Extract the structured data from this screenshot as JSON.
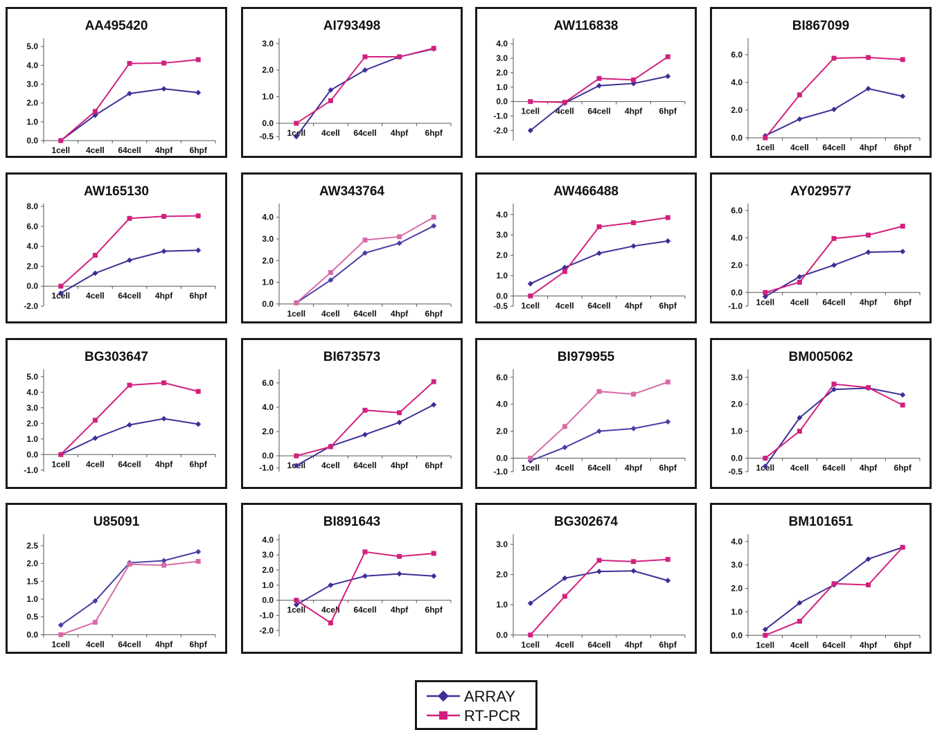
{
  "figure": {
    "legend": {
      "array_label": "ARRAY",
      "rtpcr_label": "RT-PCR"
    }
  },
  "chart_data": [
    {
      "type": "line",
      "title": "AA495420",
      "categories": [
        "1cell",
        "4cell",
        "64cell",
        "4hpf",
        "6hpf"
      ],
      "yticks": [
        "0.0",
        "1.0",
        "2.0",
        "3.0",
        "4.0",
        "5.0"
      ],
      "ylim": [
        0,
        5.3
      ],
      "series": [
        {
          "name": "ARRAY",
          "color": "#3d2f96",
          "values": [
            0.0,
            1.35,
            2.5,
            2.75,
            2.55
          ]
        },
        {
          "name": "RT-PCR",
          "color": "#d2207e",
          "values": [
            0.0,
            1.55,
            4.1,
            4.12,
            4.3
          ]
        }
      ]
    },
    {
      "type": "line",
      "title": "AI793498",
      "categories": [
        "1cell",
        "4cell",
        "64cell",
        "4hpf",
        "6hpf"
      ],
      "yticks": [
        "-0.5",
        "0.0",
        "1.0",
        "2.0",
        "3.0"
      ],
      "ylim": [
        -0.65,
        3.1
      ],
      "series": [
        {
          "name": "ARRAY",
          "color": "#3d2f96",
          "values": [
            -0.5,
            1.25,
            2.0,
            2.5,
            2.8
          ]
        },
        {
          "name": "RT-PCR",
          "color": "#d2207e",
          "values": [
            0.0,
            0.85,
            2.5,
            2.5,
            2.82
          ]
        }
      ]
    },
    {
      "type": "line",
      "title": "AW116838",
      "categories": [
        "1cell",
        "4cell",
        "64cell",
        "4hpf",
        "6hpf"
      ],
      "yticks": [
        "-2.0",
        "-1.0",
        "0.0",
        "1.0",
        "2.0",
        "3.0",
        "4.0"
      ],
      "ylim": [
        -2.7,
        4.2
      ],
      "series": [
        {
          "name": "ARRAY",
          "color": "#3d2f96",
          "values": [
            -2.0,
            -0.1,
            1.1,
            1.25,
            1.75
          ]
        },
        {
          "name": "RT-PCR",
          "color": "#d2207e",
          "values": [
            0.0,
            -0.05,
            1.6,
            1.5,
            3.1
          ]
        }
      ]
    },
    {
      "type": "line",
      "title": "BI867099",
      "categories": [
        "1cell",
        "4cell",
        "64cell",
        "4hpf",
        "6hpf"
      ],
      "yticks": [
        "0.0",
        "2.0",
        "4.0",
        "6.0"
      ],
      "ylim": [
        -0.2,
        7.0
      ],
      "series": [
        {
          "name": "ARRAY",
          "color": "#3d2f96",
          "values": [
            0.15,
            1.35,
            2.05,
            3.55,
            3.0
          ]
        },
        {
          "name": "RT-PCR",
          "color": "#d2207e",
          "values": [
            0.0,
            3.1,
            5.75,
            5.8,
            5.65
          ]
        }
      ]
    },
    {
      "type": "line",
      "title": "AW165130",
      "categories": [
        "1cell",
        "4cell",
        "64cell",
        "4hpf",
        "6hpf"
      ],
      "yticks": [
        "-2.0",
        "0.0",
        "2.0",
        "4.0",
        "6.0",
        "8.0"
      ],
      "ylim": [
        -2.0,
        8.0
      ],
      "series": [
        {
          "name": "ARRAY",
          "color": "#3d2f96",
          "values": [
            -0.7,
            1.3,
            2.6,
            3.5,
            3.6
          ]
        },
        {
          "name": "RT-PCR",
          "color": "#d2207e",
          "values": [
            0.0,
            3.1,
            6.8,
            7.0,
            7.05
          ]
        }
      ]
    },
    {
      "type": "line",
      "title": "AW343764",
      "categories": [
        "1cell",
        "4cell",
        "64cell",
        "4hpf",
        "6hpf"
      ],
      "yticks": [
        "0.0",
        "1.0",
        "2.0",
        "3.0",
        "4.0"
      ],
      "ylim": [
        -0.1,
        4.5
      ],
      "series": [
        {
          "name": "ARRAY",
          "color": "#4a3ea5",
          "values": [
            0.05,
            1.1,
            2.35,
            2.8,
            3.6
          ]
        },
        {
          "name": "RT-PCR",
          "color": "#d86aa6",
          "values": [
            0.05,
            1.45,
            2.95,
            3.1,
            4.0
          ]
        }
      ]
    },
    {
      "type": "line",
      "title": "AW466488",
      "categories": [
        "1cell",
        "4cell",
        "64cell",
        "4hpf",
        "6hpf"
      ],
      "yticks": [
        "-0.5",
        "0.0",
        "1.0",
        "2.0",
        "3.0",
        "4.0"
      ],
      "ylim": [
        -0.5,
        4.4
      ],
      "series": [
        {
          "name": "ARRAY",
          "color": "#3d2f96",
          "values": [
            0.6,
            1.4,
            2.1,
            2.45,
            2.7
          ]
        },
        {
          "name": "RT-PCR",
          "color": "#d2207e",
          "values": [
            0.0,
            1.2,
            3.4,
            3.6,
            3.85
          ]
        }
      ]
    },
    {
      "type": "line",
      "title": "AY029577",
      "categories": [
        "1cell",
        "4cell",
        "64cell",
        "4hpf",
        "6hpf"
      ],
      "yticks": [
        "-1.0",
        "0.0",
        "2.0",
        "4.0",
        "6.0"
      ],
      "ylim": [
        -1.0,
        6.3
      ],
      "series": [
        {
          "name": "ARRAY",
          "color": "#3d2f96",
          "values": [
            -0.3,
            1.15,
            2.0,
            2.95,
            3.0
          ]
        },
        {
          "name": "RT-PCR",
          "color": "#d2207e",
          "values": [
            0.0,
            0.75,
            3.95,
            4.2,
            4.85
          ]
        }
      ]
    },
    {
      "type": "line",
      "title": "BG303647",
      "categories": [
        "1cell",
        "4cell",
        "64cell",
        "4hpf",
        "6hpf"
      ],
      "yticks": [
        "-1.0",
        "0.0",
        "1.0",
        "2.0",
        "3.0",
        "4.0",
        "5.0"
      ],
      "ylim": [
        -1.1,
        5.3
      ],
      "series": [
        {
          "name": "ARRAY",
          "color": "#3d2f96",
          "values": [
            0.0,
            1.05,
            1.9,
            2.3,
            1.95
          ]
        },
        {
          "name": "RT-PCR",
          "color": "#d2207e",
          "values": [
            0.0,
            2.2,
            4.45,
            4.6,
            4.05
          ]
        }
      ]
    },
    {
      "type": "line",
      "title": "BI673573",
      "categories": [
        "1cell",
        "4cell",
        "64cell",
        "4hpf",
        "6hpf"
      ],
      "yticks": [
        "-1.0",
        "0.0",
        "2.0",
        "4.0",
        "6.0"
      ],
      "ylim": [
        -1.3,
        6.9
      ],
      "series": [
        {
          "name": "ARRAY",
          "color": "#3d2f96",
          "values": [
            -0.8,
            0.8,
            1.75,
            2.75,
            4.2
          ]
        },
        {
          "name": "RT-PCR",
          "color": "#d2207e",
          "values": [
            0.0,
            0.75,
            3.75,
            3.55,
            6.1
          ]
        }
      ]
    },
    {
      "type": "line",
      "title": "BI979955",
      "categories": [
        "1cell",
        "4cell",
        "64cell",
        "4hpf",
        "6hpf"
      ],
      "yticks": [
        "-1.0",
        "0.0",
        "2.0",
        "4.0",
        "6.0"
      ],
      "ylim": [
        -1.0,
        6.4
      ],
      "series": [
        {
          "name": "ARRAY",
          "color": "#4a3ea5",
          "values": [
            -0.2,
            0.8,
            2.0,
            2.2,
            2.7
          ]
        },
        {
          "name": "RT-PCR",
          "color": "#d86aa6",
          "values": [
            0.0,
            2.35,
            4.95,
            4.75,
            5.65
          ]
        }
      ]
    },
    {
      "type": "line",
      "title": "BM005062",
      "categories": [
        "1cell",
        "4cell",
        "64cell",
        "4hpf",
        "6hpf"
      ],
      "yticks": [
        "-0.5",
        "0.0",
        "1.0",
        "2.0",
        "3.0"
      ],
      "ylim": [
        -0.5,
        3.2
      ],
      "series": [
        {
          "name": "ARRAY",
          "color": "#3d2f96",
          "values": [
            -0.3,
            1.5,
            2.55,
            2.6,
            2.35
          ]
        },
        {
          "name": "RT-PCR",
          "color": "#d2207e",
          "values": [
            0.0,
            1.0,
            2.75,
            2.62,
            1.97
          ]
        }
      ]
    },
    {
      "type": "line",
      "title": "U85091",
      "categories": [
        "1cell",
        "4cell",
        "64cell",
        "4hpf",
        "6hpf"
      ],
      "yticks": [
        "0.0",
        "0.5",
        "1.0",
        "1.5",
        "2.0",
        "2.5"
      ],
      "ylim": [
        -0.05,
        2.75
      ],
      "series": [
        {
          "name": "ARRAY",
          "color": "#4a3ea5",
          "values": [
            0.27,
            0.95,
            2.02,
            2.08,
            2.33
          ]
        },
        {
          "name": "RT-PCR",
          "color": "#d86aa6",
          "values": [
            0.0,
            0.35,
            1.98,
            1.95,
            2.06
          ]
        }
      ]
    },
    {
      "type": "line",
      "title": "BI891643",
      "categories": [
        "1cell",
        "4cell",
        "64cell",
        "4hpf",
        "6hpf"
      ],
      "yticks": [
        "-2.0",
        "-1.0",
        "0.0",
        "1.0",
        "2.0",
        "3.0",
        "4.0"
      ],
      "ylim": [
        -2.4,
        4.2
      ],
      "series": [
        {
          "name": "ARRAY",
          "color": "#3d2f96",
          "values": [
            -0.3,
            1.0,
            1.6,
            1.75,
            1.6
          ]
        },
        {
          "name": "RT-PCR",
          "color": "#d2207e",
          "values": [
            0.0,
            -1.5,
            3.2,
            2.9,
            3.1
          ]
        }
      ]
    },
    {
      "type": "line",
      "title": "BG302674",
      "categories": [
        "1cell",
        "4cell",
        "64cell",
        "4hpf",
        "6hpf"
      ],
      "yticks": [
        "0.0",
        "1.0",
        "2.0",
        "3.0"
      ],
      "ylim": [
        -0.05,
        3.25
      ],
      "series": [
        {
          "name": "ARRAY",
          "color": "#3d2f96",
          "values": [
            1.05,
            1.88,
            2.1,
            2.12,
            1.8
          ]
        },
        {
          "name": "RT-PCR",
          "color": "#d2207e",
          "values": [
            0.0,
            1.28,
            2.47,
            2.43,
            2.5
          ]
        }
      ]
    },
    {
      "type": "line",
      "title": "BM101651",
      "categories": [
        "1cell",
        "4cell",
        "64cell",
        "4hpf",
        "6hpf"
      ],
      "yticks": [
        "0.0",
        "1.0",
        "2.0",
        "3.0",
        "4.0"
      ],
      "ylim": [
        -0.05,
        4.2
      ],
      "series": [
        {
          "name": "ARRAY",
          "color": "#3d2f96",
          "values": [
            0.25,
            1.38,
            2.15,
            3.25,
            3.75
          ]
        },
        {
          "name": "RT-PCR",
          "color": "#d2207e",
          "values": [
            0.0,
            0.6,
            2.2,
            2.15,
            3.75
          ]
        }
      ]
    }
  ]
}
